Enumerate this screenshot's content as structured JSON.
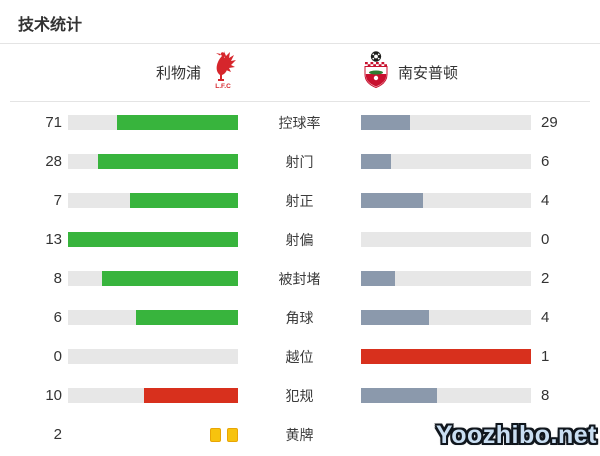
{
  "title": "技术统计",
  "teams": {
    "home": {
      "name": "利物浦"
    },
    "away": {
      "name": "南安普顿"
    }
  },
  "colors": {
    "green": "#38b43d",
    "slate": "#8b99ac",
    "red": "#d8301d",
    "track": "#e7e7e7",
    "card_yellow": "#f7c30e"
  },
  "rows": [
    {
      "label": "控球率",
      "home": 71,
      "away": 29,
      "home_fill": "green",
      "away_fill": "slate",
      "type": "bar"
    },
    {
      "label": "射门",
      "home": 28,
      "away": 6,
      "home_fill": "green",
      "away_fill": "slate",
      "type": "bar"
    },
    {
      "label": "射正",
      "home": 7,
      "away": 4,
      "home_fill": "green",
      "away_fill": "slate",
      "type": "bar"
    },
    {
      "label": "射偏",
      "home": 13,
      "away": 0,
      "home_fill": "green",
      "away_fill": "slate",
      "type": "bar"
    },
    {
      "label": "被封堵",
      "home": 8,
      "away": 2,
      "home_fill": "green",
      "away_fill": "slate",
      "type": "bar"
    },
    {
      "label": "角球",
      "home": 6,
      "away": 4,
      "home_fill": "green",
      "away_fill": "slate",
      "type": "bar"
    },
    {
      "label": "越位",
      "home": 0,
      "away": 1,
      "home_fill": "green",
      "away_fill": "red",
      "type": "bar"
    },
    {
      "label": "犯规",
      "home": 10,
      "away": 8,
      "home_fill": "red",
      "away_fill": "slate",
      "type": "bar"
    },
    {
      "label": "黄牌",
      "home": 2,
      "away": 0,
      "home_fill": "green",
      "away_fill": "slate",
      "type": "cards"
    }
  ],
  "chart_data": {
    "type": "bar",
    "title": "技术统计",
    "categories": [
      "控球率",
      "射门",
      "射正",
      "射偏",
      "被封堵",
      "角球",
      "越位",
      "犯规",
      "黄牌"
    ],
    "series": [
      {
        "name": "利物浦",
        "values": [
          71,
          28,
          7,
          13,
          8,
          6,
          0,
          10,
          2
        ]
      },
      {
        "name": "南安普顿",
        "values": [
          29,
          6,
          4,
          0,
          2,
          4,
          1,
          8,
          0
        ]
      }
    ],
    "layout": "paired horizontal bars, each pair fills proportionally to value/(home+away); home bars anchored right in green (red for 犯规), away bars anchored left in slate (red for 越位); 黄牌 row shows yellow card icons instead of bars"
  },
  "watermark": "Yoozhibo.net"
}
